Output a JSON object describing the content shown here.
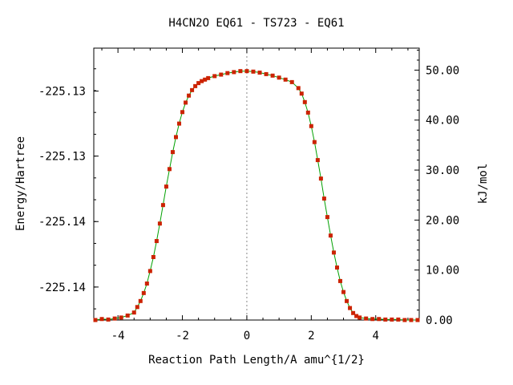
{
  "chart_data": {
    "type": "line",
    "title": "H4CN2O   EQ61 - TS723 - EQ61",
    "xlabel": "Reaction Path Length/A amu^{1/2}",
    "ylabel": "Energy/Hartree",
    "y2label": "kJ/mol",
    "xlim": [
      -4.75,
      5.35
    ],
    "y2lim": [
      0,
      54.4
    ],
    "x_ticks": [
      "-4",
      "-2",
      "0",
      "2",
      "4"
    ],
    "x_tick_values": [
      -4,
      -2,
      0,
      2,
      4
    ],
    "y_ticks": [
      "-225.13",
      "-225.13",
      "-225.14",
      "-225.14"
    ],
    "y_tick_kj": [
      45.8,
      32.8,
      19.7,
      6.6
    ],
    "y2_ticks": [
      "50.00",
      "40.00",
      "30.00",
      "20.00",
      "10.00",
      "0.00"
    ],
    "y2_tick_values": [
      50,
      40,
      30,
      20,
      10,
      0
    ],
    "ts_marker_x": 0,
    "grid": false,
    "series": [
      {
        "color_line": "#00a000",
        "color_marker": "#cc2200",
        "x": [
          -4.7,
          -4.5,
          -4.3,
          -4.1,
          -3.9,
          -3.7,
          -3.5,
          -3.4,
          -3.3,
          -3.2,
          -3.1,
          -3.0,
          -2.9,
          -2.8,
          -2.7,
          -2.6,
          -2.5,
          -2.4,
          -2.3,
          -2.2,
          -2.1,
          -2.0,
          -1.9,
          -1.8,
          -1.7,
          -1.6,
          -1.5,
          -1.4,
          -1.3,
          -1.2,
          -1.0,
          -0.8,
          -0.6,
          -0.4,
          -0.2,
          0.0,
          0.2,
          0.4,
          0.6,
          0.8,
          1.0,
          1.2,
          1.4,
          1.6,
          1.7,
          1.8,
          1.9,
          2.0,
          2.1,
          2.2,
          2.3,
          2.4,
          2.5,
          2.6,
          2.7,
          2.8,
          2.9,
          3.0,
          3.1,
          3.2,
          3.3,
          3.4,
          3.5,
          3.7,
          3.9,
          4.1,
          4.3,
          4.5,
          4.7,
          4.9,
          5.1,
          5.3
        ],
        "y": [
          0.0,
          0.2,
          0.1,
          0.3,
          0.5,
          0.9,
          1.5,
          2.6,
          3.8,
          5.4,
          7.3,
          9.8,
          12.6,
          15.8,
          19.3,
          23.0,
          26.7,
          30.2,
          33.6,
          36.6,
          39.3,
          41.6,
          43.5,
          44.9,
          46.0,
          46.8,
          47.4,
          47.8,
          48.1,
          48.4,
          48.8,
          49.1,
          49.4,
          49.6,
          49.8,
          49.8,
          49.7,
          49.5,
          49.2,
          48.9,
          48.5,
          48.1,
          47.6,
          46.4,
          45.3,
          43.6,
          41.5,
          38.8,
          35.6,
          32.0,
          28.3,
          24.3,
          20.6,
          16.9,
          13.5,
          10.5,
          7.8,
          5.6,
          3.8,
          2.4,
          1.4,
          0.8,
          0.5,
          0.3,
          0.2,
          0.2,
          0.1,
          0.1,
          0.1,
          0.0,
          0.0,
          0.0
        ]
      }
    ]
  }
}
